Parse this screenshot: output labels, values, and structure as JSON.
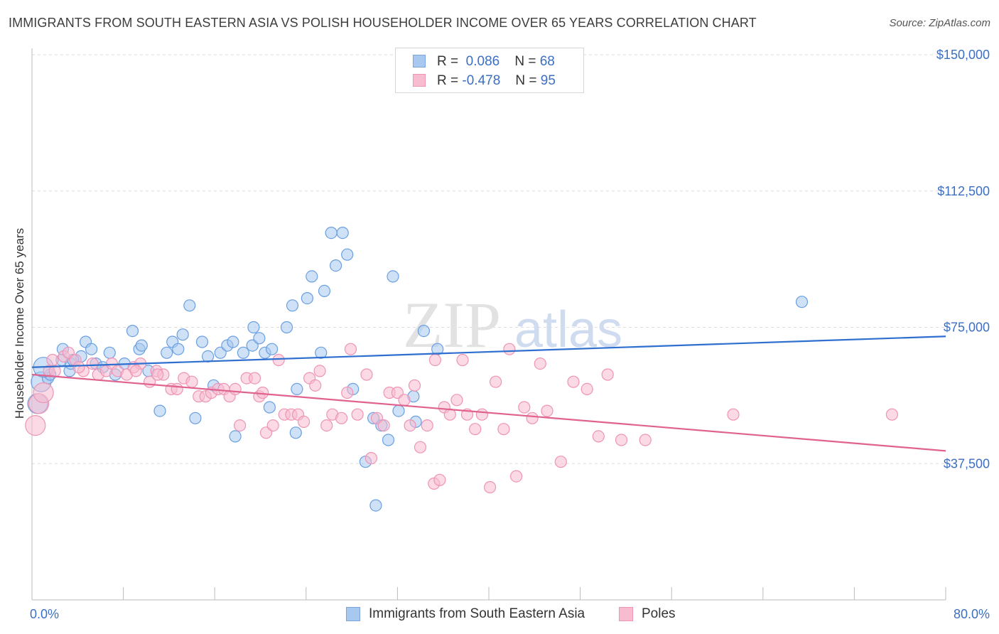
{
  "header": {
    "title": "IMMIGRANTS FROM SOUTH EASTERN ASIA VS POLISH HOUSEHOLDER INCOME OVER 65 YEARS CORRELATION CHART",
    "source": "Source: ZipAtlas.com"
  },
  "watermark": {
    "zip": "ZIP",
    "atlas": "atlas"
  },
  "legend": {
    "rows": [
      {
        "r_label": "R =",
        "r_value": "0.086",
        "n_label": "N =",
        "n_value": "68",
        "color": "#a8c8f0",
        "border": "#7aa6e0"
      },
      {
        "r_label": "R =",
        "r_value": "-0.478",
        "n_label": "N =",
        "n_value": "95",
        "color": "#f8bcd0",
        "border": "#ee94b4"
      }
    ]
  },
  "bottom_legend": {
    "items": [
      {
        "label": "Immigrants from South Eastern Asia",
        "color": "#a8c8f0",
        "border": "#7aa6e0"
      },
      {
        "label": "Poles",
        "color": "#f8bcd0",
        "border": "#ee94b4"
      }
    ]
  },
  "chart_data": {
    "type": "scatter",
    "title": "IMMIGRANTS FROM SOUTH EASTERN ASIA VS POLISH HOUSEHOLDER INCOME OVER 65 YEARS CORRELATION CHART",
    "xlabel": "",
    "ylabel": "Householder Income Over 65 years",
    "xlim": [
      0,
      80
    ],
    "ylim": [
      0,
      150000
    ],
    "x_tick_labels": [
      "0.0%",
      "80.0%"
    ],
    "y_ticks": [
      37500,
      75000,
      112500,
      150000
    ],
    "y_tick_labels": [
      "$37,500",
      "$75,000",
      "$112,500",
      "$150,000"
    ],
    "grid": true,
    "legend_position": "top-center",
    "series": [
      {
        "name": "Immigrants from South Eastern Asia",
        "color": "#6a9fe0",
        "fill": "#a8c8f0",
        "trend": {
          "x": [
            0,
            80
          ],
          "y": [
            64000,
            72500
          ]
        },
        "points": [
          [
            0.5,
            54000
          ],
          [
            0.8,
            60000
          ],
          [
            1.4,
            61000
          ],
          [
            1.6,
            62000
          ],
          [
            2.6,
            66000
          ],
          [
            2.7,
            69000
          ],
          [
            3.3,
            63000
          ],
          [
            3.4,
            65000
          ],
          [
            4.3,
            67000
          ],
          [
            4.7,
            71000
          ],
          [
            5.2,
            69000
          ],
          [
            5.6,
            65000
          ],
          [
            6.2,
            64000
          ],
          [
            6.8,
            68000
          ],
          [
            7.3,
            62000
          ],
          [
            8.1,
            65000
          ],
          [
            8.8,
            74000
          ],
          [
            9.4,
            69000
          ],
          [
            9.6,
            70000
          ],
          [
            10.2,
            63000
          ],
          [
            11.2,
            52000
          ],
          [
            11.8,
            68000
          ],
          [
            12.3,
            71000
          ],
          [
            12.8,
            69000
          ],
          [
            13.2,
            73000
          ],
          [
            13.8,
            81000
          ],
          [
            14.3,
            50000
          ],
          [
            14.9,
            71000
          ],
          [
            15.4,
            67000
          ],
          [
            15.9,
            59000
          ],
          [
            16.5,
            68000
          ],
          [
            17.1,
            70000
          ],
          [
            17.6,
            71000
          ],
          [
            17.8,
            45000
          ],
          [
            18.5,
            68000
          ],
          [
            19.3,
            70000
          ],
          [
            19.4,
            75000
          ],
          [
            19.9,
            72000
          ],
          [
            20.4,
            68000
          ],
          [
            20.8,
            53000
          ],
          [
            21.0,
            69000
          ],
          [
            22.3,
            75000
          ],
          [
            22.8,
            81000
          ],
          [
            23.2,
            58000
          ],
          [
            23.1,
            46000
          ],
          [
            24.1,
            83000
          ],
          [
            24.5,
            89000
          ],
          [
            25.3,
            68000
          ],
          [
            25.6,
            85000
          ],
          [
            26.2,
            101000
          ],
          [
            26.6,
            92000
          ],
          [
            27.2,
            101000
          ],
          [
            27.6,
            95000
          ],
          [
            28.1,
            58000
          ],
          [
            29.2,
            38000
          ],
          [
            29.9,
            50000
          ],
          [
            30.1,
            26000
          ],
          [
            30.6,
            48000
          ],
          [
            31.2,
            44000
          ],
          [
            31.6,
            89000
          ],
          [
            32.1,
            52000
          ],
          [
            33.4,
            56000
          ],
          [
            33.6,
            49000
          ],
          [
            34.3,
            74000
          ],
          [
            35.5,
            69000
          ],
          [
            67.4,
            82000
          ],
          [
            1.0,
            64000
          ],
          [
            3.6,
            66000
          ]
        ]
      },
      {
        "name": "Poles",
        "color": "#ee94b4",
        "fill": "#f8bcd0",
        "trend": {
          "x": [
            0,
            80
          ],
          "y": [
            62000,
            41000
          ]
        },
        "points": [
          [
            0.3,
            48000
          ],
          [
            0.6,
            54000
          ],
          [
            1.0,
            57000
          ],
          [
            1.5,
            63000
          ],
          [
            2.0,
            63000
          ],
          [
            2.8,
            67000
          ],
          [
            3.2,
            68000
          ],
          [
            3.8,
            66000
          ],
          [
            4.5,
            63000
          ],
          [
            5.3,
            65000
          ],
          [
            5.8,
            62000
          ],
          [
            6.5,
            63000
          ],
          [
            7.0,
            65000
          ],
          [
            7.5,
            63000
          ],
          [
            8.3,
            62000
          ],
          [
            8.9,
            64000
          ],
          [
            9.5,
            65000
          ],
          [
            10.3,
            60000
          ],
          [
            10.9,
            63000
          ],
          [
            11.5,
            62000
          ],
          [
            12.2,
            58000
          ],
          [
            12.7,
            58000
          ],
          [
            13.3,
            61000
          ],
          [
            14.0,
            60000
          ],
          [
            14.6,
            56000
          ],
          [
            15.2,
            56000
          ],
          [
            15.7,
            57000
          ],
          [
            16.3,
            58000
          ],
          [
            16.8,
            58000
          ],
          [
            17.3,
            56000
          ],
          [
            17.8,
            58000
          ],
          [
            18.2,
            48000
          ],
          [
            18.8,
            61000
          ],
          [
            19.5,
            61000
          ],
          [
            19.9,
            56000
          ],
          [
            20.2,
            57000
          ],
          [
            20.5,
            46000
          ],
          [
            21.1,
            48000
          ],
          [
            21.6,
            66000
          ],
          [
            22.1,
            51000
          ],
          [
            22.7,
            51000
          ],
          [
            23.3,
            51000
          ],
          [
            23.8,
            49000
          ],
          [
            24.3,
            61000
          ],
          [
            24.8,
            59000
          ],
          [
            25.2,
            63000
          ],
          [
            25.8,
            48000
          ],
          [
            26.3,
            51000
          ],
          [
            27.1,
            50000
          ],
          [
            27.6,
            57000
          ],
          [
            27.9,
            69000
          ],
          [
            28.5,
            51000
          ],
          [
            29.3,
            62000
          ],
          [
            29.7,
            39000
          ],
          [
            30.2,
            50000
          ],
          [
            30.8,
            48000
          ],
          [
            31.3,
            57000
          ],
          [
            32.0,
            57000
          ],
          [
            32.6,
            55000
          ],
          [
            33.1,
            48000
          ],
          [
            33.5,
            59000
          ],
          [
            34.0,
            42000
          ],
          [
            34.6,
            48000
          ],
          [
            35.2,
            32000
          ],
          [
            35.7,
            33000
          ],
          [
            35.3,
            66000
          ],
          [
            36.1,
            53000
          ],
          [
            36.6,
            51000
          ],
          [
            37.2,
            55000
          ],
          [
            37.7,
            66000
          ],
          [
            38.1,
            51000
          ],
          [
            38.8,
            47000
          ],
          [
            39.4,
            51000
          ],
          [
            40.1,
            31000
          ],
          [
            40.6,
            60000
          ],
          [
            41.3,
            47000
          ],
          [
            41.8,
            69000
          ],
          [
            42.4,
            34000
          ],
          [
            43.1,
            53000
          ],
          [
            43.8,
            50000
          ],
          [
            44.5,
            65000
          ],
          [
            45.1,
            52000
          ],
          [
            46.3,
            38000
          ],
          [
            47.4,
            60000
          ],
          [
            48.6,
            58000
          ],
          [
            49.6,
            45000
          ],
          [
            50.4,
            62000
          ],
          [
            51.6,
            44000
          ],
          [
            53.7,
            44000
          ],
          [
            61.4,
            51000
          ],
          [
            75.3,
            51000
          ],
          [
            1.8,
            66000
          ],
          [
            4.1,
            64000
          ],
          [
            9.1,
            63000
          ],
          [
            11.0,
            62000
          ]
        ]
      }
    ]
  }
}
